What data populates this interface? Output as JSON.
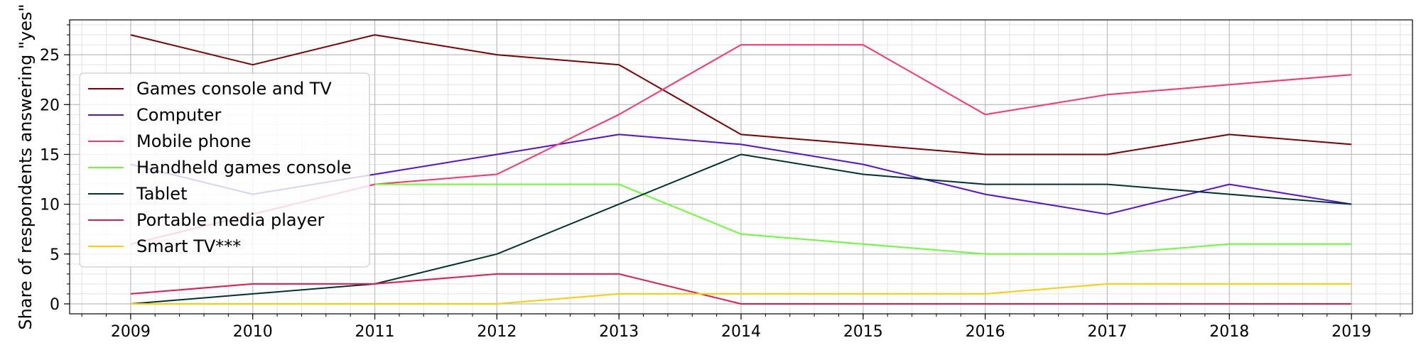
{
  "chart_data": {
    "type": "line",
    "title": "",
    "xlabel": "",
    "ylabel": "Share of respondents answering \"yes\"",
    "x": [
      2009,
      2010,
      2011,
      2012,
      2013,
      2014,
      2015,
      2016,
      2017,
      2018,
      2019
    ],
    "xlim": [
      2008.5,
      2019.5
    ],
    "ylim": [
      -1,
      28.5
    ],
    "yticks": [
      0,
      5,
      10,
      15,
      20,
      25
    ],
    "grid": true,
    "legend_position": "center-left",
    "series": [
      {
        "name": "Games console and TV",
        "color": "#800000",
        "values": [
          27,
          24,
          27,
          25,
          24,
          17,
          16,
          15,
          15,
          17,
          16
        ]
      },
      {
        "name": "Computer",
        "color": "#5a0fd6",
        "values": [
          14,
          11,
          13,
          15,
          17,
          16,
          14,
          11,
          9,
          12,
          10
        ]
      },
      {
        "name": "Mobile phone",
        "color": "#ff3366",
        "values": [
          6,
          9,
          12,
          13,
          19,
          26,
          26,
          19,
          21,
          22,
          23
        ]
      },
      {
        "name": "Handheld games console",
        "color": "#66ff33",
        "values": [
          null,
          null,
          12,
          12,
          12,
          7,
          6,
          5,
          5,
          6,
          6
        ]
      },
      {
        "name": "Tablet",
        "color": "#003333",
        "values": [
          0,
          1,
          2,
          5,
          10,
          15,
          13,
          12,
          12,
          11,
          10
        ]
      },
      {
        "name": "Portable media player",
        "color": "#e6194b",
        "values": [
          1,
          2,
          2,
          3,
          3,
          0,
          0,
          0,
          0,
          0,
          0
        ]
      },
      {
        "name": "Smart TV***",
        "color": "#ffcc00",
        "values": [
          0,
          0,
          0,
          0,
          1,
          1,
          1,
          1,
          2,
          2,
          2
        ]
      }
    ]
  }
}
